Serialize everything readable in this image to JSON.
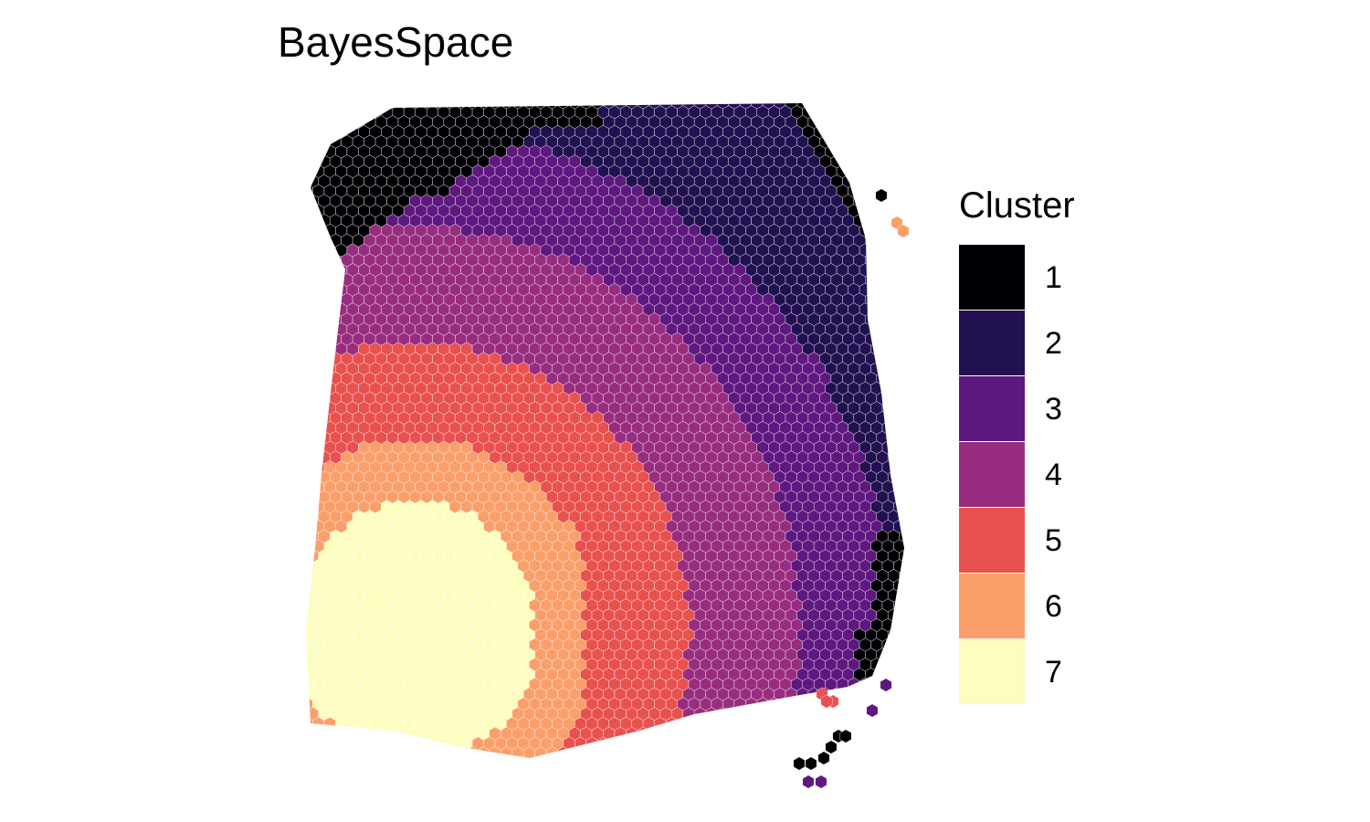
{
  "title": "BayesSpace",
  "chart_data": {
    "type": "heatmap",
    "title": "BayesSpace",
    "xlabel": "",
    "ylabel": "",
    "grid": false,
    "legend_position": "right",
    "legend": {
      "title": "Cluster",
      "entries": [
        {
          "label": "1",
          "color": "#000004"
        },
        {
          "label": "2",
          "color": "#221150"
        },
        {
          "label": "3",
          "color": "#5f187f"
        },
        {
          "label": "4",
          "color": "#982d80"
        },
        {
          "label": "5",
          "color": "#e8514e"
        },
        {
          "label": "6",
          "color": "#fb9f6a"
        },
        {
          "label": "7",
          "color": "#fcfdbf"
        }
      ]
    }
  }
}
